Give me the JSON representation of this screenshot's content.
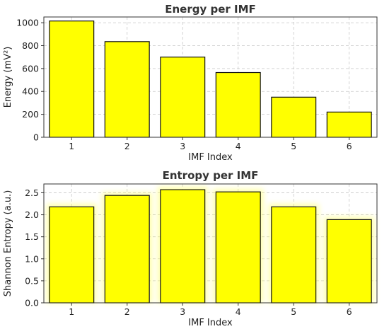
{
  "chart_data": [
    {
      "type": "bar",
      "title": "Energy per IMF",
      "xlabel": "IMF Index",
      "ylabel": "Energy (mV²)",
      "categories": [
        "1",
        "2",
        "3",
        "4",
        "5",
        "6"
      ],
      "values": [
        1015,
        835,
        700,
        565,
        350,
        220
      ],
      "ylim": [
        0,
        1050
      ],
      "yticks": [
        0,
        200,
        400,
        600,
        800,
        1000
      ],
      "grid": true,
      "bar_color": "#ffff00",
      "edge_color": "#111111"
    },
    {
      "type": "bar",
      "title": "Entropy per IMF",
      "xlabel": "IMF Index",
      "ylabel": "Shannon Entropy (a.u.)",
      "categories": [
        "1",
        "2",
        "3",
        "4",
        "5",
        "6"
      ],
      "values": [
        2.18,
        2.44,
        2.57,
        2.52,
        2.18,
        1.89
      ],
      "ylim": [
        0,
        2.7
      ],
      "yticks": [
        "0.0",
        "0.5",
        "1.0",
        "1.5",
        "2.0",
        "2.5"
      ],
      "grid": true,
      "bar_color": "#ffff00",
      "edge_color": "#111111",
      "glow_color": "#ffff66"
    }
  ]
}
